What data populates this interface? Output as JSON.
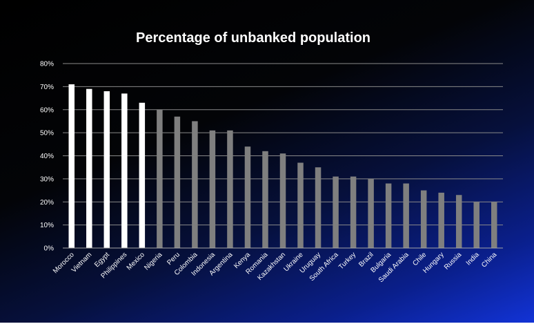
{
  "chart_data": {
    "type": "bar",
    "title": "Percentage of unbanked population",
    "xlabel": "",
    "ylabel": "",
    "ylim": [
      0,
      80
    ],
    "yticks": [
      "0%",
      "10%",
      "20%",
      "30%",
      "40%",
      "50%",
      "60%",
      "70%",
      "80%"
    ],
    "grid": true,
    "categories": [
      "Morocco",
      "Vietnam",
      "Egypt",
      "Philippines",
      "Mexico",
      "Nigeria",
      "Peru",
      "Colombia",
      "Indonesia",
      "Argentina",
      "Kenya",
      "Romania",
      "Kazakhstan",
      "Ukraine",
      "Uruguay",
      "South Africa",
      "Turkey",
      "Brazil",
      "Bulgaria",
      "Saudi Arabia",
      "Chile",
      "Hungary",
      "Russia",
      "India",
      "China"
    ],
    "values": [
      71,
      69,
      68,
      67,
      63,
      60,
      57,
      55,
      51,
      51,
      44,
      42,
      41,
      37,
      35,
      31,
      31,
      30,
      28,
      28,
      25,
      24,
      23,
      20,
      20
    ],
    "bar_colors": [
      "#ffffff",
      "#ffffff",
      "#ffffff",
      "#ffffff",
      "#ffffff",
      "#7f7f7f",
      "#7f7f7f",
      "#7f7f7f",
      "#7f7f7f",
      "#7f7f7f",
      "#7f7f7f",
      "#7f7f7f",
      "#7f7f7f",
      "#7f7f7f",
      "#7f7f7f",
      "#7f7f7f",
      "#7f7f7f",
      "#7f7f7f",
      "#7f7f7f",
      "#7f7f7f",
      "#7f7f7f",
      "#7f7f7f",
      "#7f7f7f",
      "#7f7f7f",
      "#7f7f7f"
    ]
  }
}
